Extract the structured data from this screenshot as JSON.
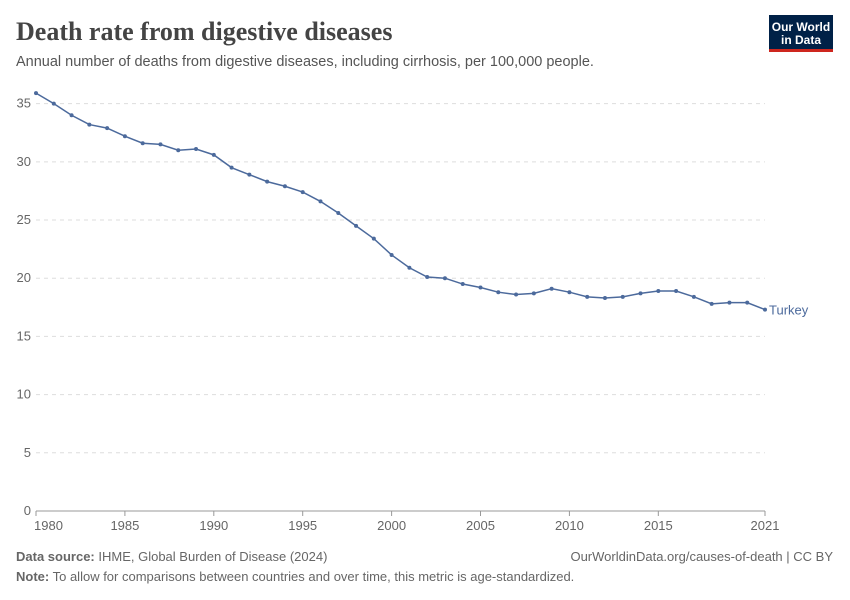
{
  "chart_data": {
    "type": "line",
    "title": "Death rate from digestive diseases",
    "subtitle": "Annual number of deaths from digestive diseases, including cirrhosis, per 100,000 people.",
    "logo": [
      "Our World",
      "in Data"
    ],
    "source_label": "Data source:",
    "source": "IHME, Global Burden of Disease (2024)",
    "url": "OurWorldinData.org/causes-of-death | CC BY",
    "note_label": "Note:",
    "note": "To allow for comparisons between countries and over time, this metric is age-standardized.",
    "x": [
      1980,
      1981,
      1982,
      1983,
      1984,
      1985,
      1986,
      1987,
      1988,
      1989,
      1990,
      1991,
      1992,
      1993,
      1994,
      1995,
      1996,
      1997,
      1998,
      1999,
      2000,
      2001,
      2002,
      2003,
      2004,
      2005,
      2006,
      2007,
      2008,
      2009,
      2010,
      2011,
      2012,
      2013,
      2014,
      2015,
      2016,
      2017,
      2018,
      2019,
      2020,
      2021
    ],
    "series": [
      {
        "name": "Turkey",
        "color": "#4c6a9c",
        "values": [
          35.9,
          35.0,
          34.0,
          33.2,
          32.9,
          32.2,
          31.6,
          31.5,
          31.0,
          31.1,
          30.6,
          29.5,
          28.9,
          28.3,
          27.9,
          27.4,
          26.6,
          25.6,
          24.5,
          23.4,
          22.0,
          20.9,
          20.1,
          20.0,
          19.5,
          19.2,
          18.8,
          18.6,
          18.7,
          19.1,
          18.8,
          18.4,
          18.3,
          18.4,
          18.7,
          18.9,
          18.9,
          18.4,
          17.8,
          17.9,
          17.9,
          17.3
        ]
      }
    ],
    "xlim": [
      1980,
      2021
    ],
    "xticks": [
      1980,
      1985,
      1990,
      1995,
      2000,
      2005,
      2010,
      2015,
      2021
    ],
    "ylim": [
      0,
      36
    ],
    "yticks": [
      0,
      5,
      10,
      15,
      20,
      25,
      30,
      35
    ],
    "grid": true
  }
}
